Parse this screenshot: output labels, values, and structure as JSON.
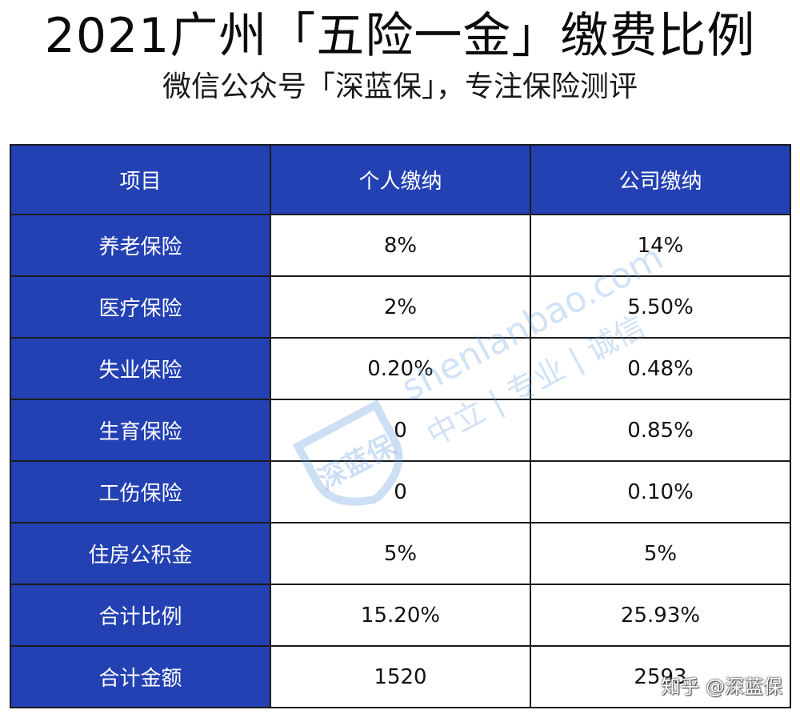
{
  "title": "2021广州「五险一金」缴费比例",
  "subtitle": "微信公众号「深蓝保」，专注保险测评",
  "table": {
    "headers": [
      "项目",
      "个人缴纳",
      "公司缴纳"
    ],
    "rows": [
      {
        "item": "养老保险",
        "personal": "8%",
        "company": "14%"
      },
      {
        "item": "医疗保险",
        "personal": "2%",
        "company": "5.50%"
      },
      {
        "item": "失业保险",
        "personal": "0.20%",
        "company": "0.48%"
      },
      {
        "item": "生育保险",
        "personal": "0",
        "company": "0.85%"
      },
      {
        "item": "工伤保险",
        "personal": "0",
        "company": "0.10%"
      },
      {
        "item": "住房公积金",
        "personal": "5%",
        "company": "5%"
      },
      {
        "item": "合计比例",
        "personal": "15.20%",
        "company": "25.93%"
      },
      {
        "item": "合计金额",
        "personal": "1520",
        "company": "2593"
      }
    ]
  },
  "watermark": {
    "logo_text": "深蓝保",
    "domain": "shenlanbao.com",
    "tagline": "中立 | 专业 | 诚信"
  },
  "source_mark": "知乎 @深蓝保",
  "colors": {
    "header_bg": "#2341b3",
    "border": "#1b1b1b",
    "watermark": "#5a96dc"
  }
}
